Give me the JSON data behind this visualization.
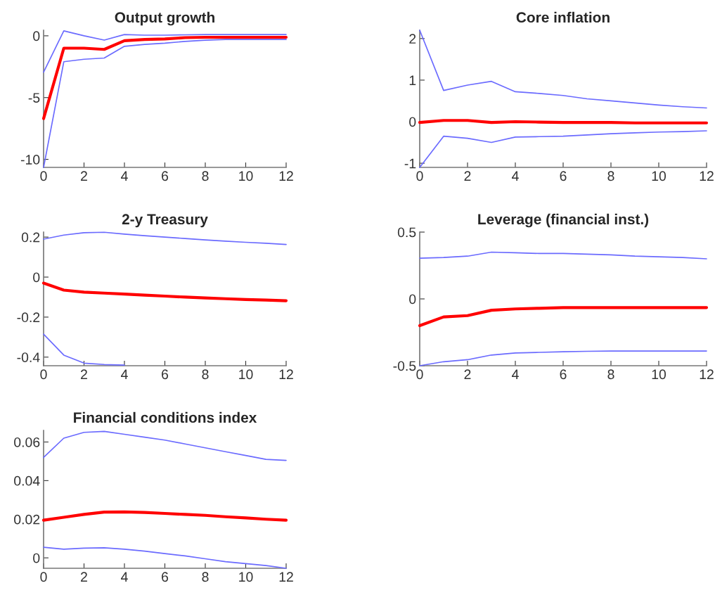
{
  "chart_data": [
    {
      "type": "line",
      "title": "Output growth",
      "x": [
        0,
        1,
        2,
        3,
        4,
        5,
        6,
        7,
        8,
        9,
        10,
        11,
        12
      ],
      "xlim": [
        0,
        12
      ],
      "xticks": [
        0,
        2,
        4,
        6,
        8,
        10,
        12
      ],
      "ylim": [
        -10.65,
        0.45
      ],
      "yticks": [
        -10,
        -5,
        0
      ],
      "grid": false,
      "legend": false,
      "series": [
        {
          "color": "#6b6bff",
          "values": [
            -2.95,
            0.4,
            0.0,
            -0.35,
            0.1,
            0.05,
            0.05,
            0.08,
            0.1,
            0.1,
            0.1,
            0.1,
            0.1
          ]
        },
        {
          "color": "#ff0000",
          "values": [
            -6.7,
            -1.0,
            -1.0,
            -1.1,
            -0.4,
            -0.3,
            -0.25,
            -0.15,
            -0.12,
            -0.12,
            -0.12,
            -0.12,
            -0.12
          ]
        },
        {
          "color": "#6b6bff",
          "values": [
            -10.65,
            -2.1,
            -1.9,
            -1.8,
            -0.85,
            -0.7,
            -0.6,
            -0.45,
            -0.35,
            -0.3,
            -0.3,
            -0.3,
            -0.3
          ]
        }
      ]
    },
    {
      "type": "line",
      "title": "Core inflation",
      "x": [
        0,
        1,
        2,
        3,
        4,
        5,
        6,
        7,
        8,
        9,
        10,
        11,
        12
      ],
      "xlim": [
        0,
        12
      ],
      "xticks": [
        0,
        2,
        4,
        6,
        8,
        10,
        12
      ],
      "ylim": [
        -1.1,
        2.2
      ],
      "yticks": [
        -1,
        0,
        1,
        2
      ],
      "grid": false,
      "legend": false,
      "series": [
        {
          "color": "#6b6bff",
          "values": [
            2.2,
            0.75,
            0.88,
            0.97,
            0.72,
            0.68,
            0.63,
            0.55,
            0.5,
            0.45,
            0.4,
            0.36,
            0.33
          ]
        },
        {
          "color": "#ff0000",
          "values": [
            -0.02,
            0.03,
            0.03,
            -0.02,
            0.0,
            -0.01,
            -0.02,
            -0.02,
            -0.02,
            -0.03,
            -0.03,
            -0.03,
            -0.03
          ]
        },
        {
          "color": "#6b6bff",
          "values": [
            -1.1,
            -0.35,
            -0.4,
            -0.5,
            -0.37,
            -0.36,
            -0.35,
            -0.32,
            -0.29,
            -0.27,
            -0.25,
            -0.24,
            -0.22
          ]
        }
      ]
    },
    {
      "type": "line",
      "title": "2-y Treasury",
      "x": [
        0,
        1,
        2,
        3,
        4,
        5,
        6,
        7,
        8,
        9,
        10,
        11,
        12
      ],
      "xlim": [
        0,
        12
      ],
      "xticks": [
        0,
        2,
        4,
        6,
        8,
        10,
        12
      ],
      "ylim": [
        -0.443,
        0.225
      ],
      "yticks": [
        -0.4,
        -0.2,
        0,
        0.2
      ],
      "grid": false,
      "legend": false,
      "series": [
        {
          "color": "#6b6bff",
          "values": [
            0.19,
            0.21,
            0.222,
            0.224,
            0.215,
            0.207,
            0.2,
            0.193,
            0.186,
            0.18,
            0.174,
            0.169,
            0.163
          ]
        },
        {
          "color": "#ff0000",
          "values": [
            -0.03,
            -0.065,
            -0.075,
            -0.08,
            -0.085,
            -0.09,
            -0.095,
            -0.1,
            -0.104,
            -0.108,
            -0.112,
            -0.115,
            -0.118
          ]
        },
        {
          "color": "#6b6bff",
          "values": [
            -0.285,
            -0.39,
            -0.43,
            -0.437,
            -0.44,
            null,
            null,
            null,
            null,
            null,
            null,
            null,
            null
          ]
        }
      ]
    },
    {
      "type": "line",
      "title": "Leverage (financial inst.)",
      "x": [
        0,
        1,
        2,
        3,
        4,
        5,
        6,
        7,
        8,
        9,
        10,
        11,
        12
      ],
      "xlim": [
        0,
        12
      ],
      "xticks": [
        0,
        2,
        4,
        6,
        8,
        10,
        12
      ],
      "ylim": [
        -0.5,
        0.5
      ],
      "yticks": [
        -0.5,
        0,
        0.5
      ],
      "grid": false,
      "legend": false,
      "series": [
        {
          "color": "#6b6bff",
          "values": [
            0.305,
            0.31,
            0.32,
            0.35,
            0.345,
            0.34,
            0.34,
            0.335,
            0.33,
            0.32,
            0.315,
            0.31,
            0.3
          ]
        },
        {
          "color": "#ff0000",
          "values": [
            -0.2,
            -0.135,
            -0.125,
            -0.085,
            -0.075,
            -0.07,
            -0.065,
            -0.065,
            -0.065,
            -0.065,
            -0.065,
            -0.065,
            -0.065
          ]
        },
        {
          "color": "#6b6bff",
          "values": [
            -0.5,
            -0.47,
            -0.455,
            -0.42,
            -0.405,
            -0.4,
            -0.395,
            -0.392,
            -0.39,
            -0.39,
            -0.39,
            -0.39,
            -0.39
          ]
        }
      ]
    },
    {
      "type": "line",
      "title": "Financial conditions index",
      "x": [
        0,
        1,
        2,
        3,
        4,
        5,
        6,
        7,
        8,
        9,
        10,
        11,
        12
      ],
      "xlim": [
        0,
        12
      ],
      "xticks": [
        0,
        2,
        4,
        6,
        8,
        10,
        12
      ],
      "ylim": [
        -0.0054,
        0.066
      ],
      "yticks": [
        0,
        0.02,
        0.04,
        0.06
      ],
      "grid": false,
      "legend": false,
      "series": [
        {
          "color": "#6b6bff",
          "values": [
            0.052,
            0.062,
            0.065,
            0.0655,
            0.064,
            0.0625,
            0.061,
            0.059,
            0.057,
            0.055,
            0.053,
            0.051,
            0.0505
          ]
        },
        {
          "color": "#ff0000",
          "values": [
            0.0195,
            0.021,
            0.0225,
            0.0237,
            0.0238,
            0.0235,
            0.023,
            0.0225,
            0.022,
            0.0213,
            0.0207,
            0.02,
            0.0195
          ]
        },
        {
          "color": "#6b6bff",
          "values": [
            0.0055,
            0.0045,
            0.005,
            0.0052,
            0.0045,
            0.0035,
            0.0022,
            0.001,
            -0.0005,
            -0.002,
            -0.003,
            -0.004,
            -0.0054
          ]
        }
      ]
    }
  ]
}
